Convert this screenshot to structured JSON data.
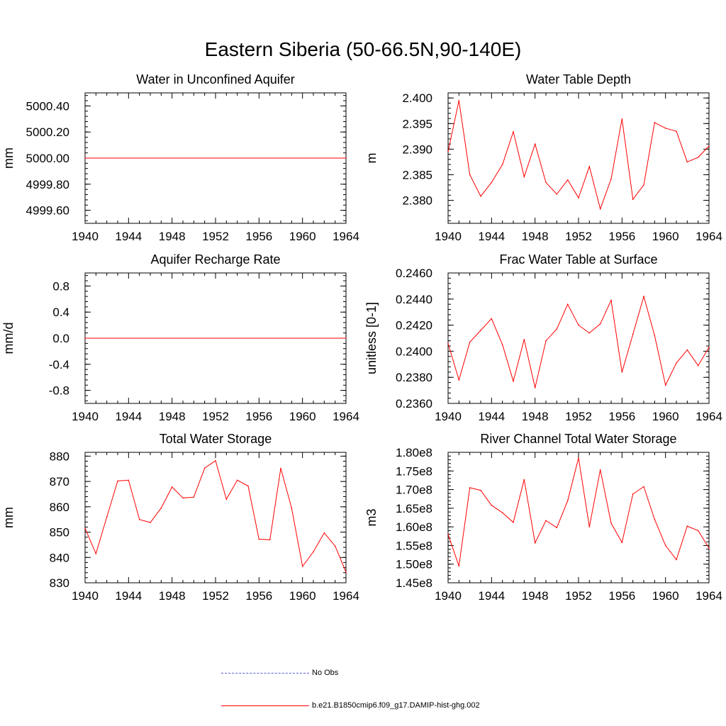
{
  "title": "Eastern Siberia (50-66.5N,90-140E)",
  "colors": {
    "model": "#ff0000",
    "obs": "#5a5ad8",
    "axis": "#000000"
  },
  "legend": {
    "obs_label": "No Obs",
    "model_label": "b.e21.B1850cmip6.f09_g17.DAMIP-hist-ghg.002"
  },
  "chart_data": [
    {
      "type": "line",
      "title": "Water in Unconfined Aquifer",
      "xlabel": "",
      "ylabel": "mm",
      "xlim": [
        1940,
        1964
      ],
      "ylim": [
        4999.5,
        5000.5
      ],
      "xticks": [
        "1940",
        "1944",
        "1948",
        "1952",
        "1956",
        "1960",
        "1964"
      ],
      "yticks": [
        {
          "v": 4999.6,
          "label": "4999.60"
        },
        {
          "v": 4999.8,
          "label": "4999.80"
        },
        {
          "v": 5000.0,
          "label": "5000.00"
        },
        {
          "v": 5000.2,
          "label": "5000.20"
        },
        {
          "v": 5000.4,
          "label": "5000.40"
        }
      ],
      "x": [
        1940,
        1964
      ],
      "series": [
        {
          "values": [
            5000.0,
            5000.0
          ]
        }
      ]
    },
    {
      "type": "line",
      "title": "Water Table Depth",
      "xlabel": "",
      "ylabel": "m",
      "xlim": [
        1940,
        1964
      ],
      "ylim": [
        2.3755,
        2.401
      ],
      "xticks": [
        "1940",
        "1944",
        "1948",
        "1952",
        "1956",
        "1960",
        "1964"
      ],
      "yticks": [
        {
          "v": 2.38,
          "label": "2.380"
        },
        {
          "v": 2.385,
          "label": "2.385"
        },
        {
          "v": 2.39,
          "label": "2.390"
        },
        {
          "v": 2.395,
          "label": "2.395"
        },
        {
          "v": 2.4,
          "label": "2.400"
        }
      ],
      "x": [
        1940,
        1941,
        1942,
        1943,
        1944,
        1945,
        1946,
        1947,
        1948,
        1949,
        1950,
        1951,
        1952,
        1953,
        1954,
        1955,
        1956,
        1957,
        1958,
        1959,
        1960,
        1961,
        1962,
        1963,
        1964
      ],
      "series": [
        {
          "values": [
            2.3895,
            2.3995,
            2.385,
            2.3808,
            2.3835,
            2.387,
            2.3934,
            2.3846,
            2.391,
            2.3835,
            2.3812,
            2.384,
            2.3805,
            2.3866,
            2.3783,
            2.3842,
            2.3959,
            2.3802,
            2.383,
            2.3952,
            2.3941,
            2.3935,
            2.3875,
            2.3884,
            2.3906
          ]
        }
      ]
    },
    {
      "type": "line",
      "title": "Aquifer Recharge Rate",
      "xlabel": "",
      "ylabel": "mm/d",
      "xlim": [
        1940,
        1964
      ],
      "ylim": [
        -1.0,
        1.0
      ],
      "xticks": [
        "1940",
        "1944",
        "1948",
        "1952",
        "1956",
        "1960",
        "1964"
      ],
      "yticks": [
        {
          "v": -0.8,
          "label": "-0.8"
        },
        {
          "v": -0.4,
          "label": "-0.4"
        },
        {
          "v": 0.0,
          "label": "0.0"
        },
        {
          "v": 0.4,
          "label": "0.4"
        },
        {
          "v": 0.8,
          "label": "0.8"
        }
      ],
      "x": [
        1940,
        1964
      ],
      "series": [
        {
          "values": [
            0.0,
            0.0
          ]
        }
      ]
    },
    {
      "type": "line",
      "title": "Frac Water Table at Surface",
      "xlabel": "",
      "ylabel": "unitless [0-1]",
      "xlim": [
        1940,
        1964
      ],
      "ylim": [
        0.236,
        0.246
      ],
      "xticks": [
        "1940",
        "1944",
        "1948",
        "1952",
        "1956",
        "1960",
        "1964"
      ],
      "yticks": [
        {
          "v": 0.236,
          "label": "0.2360"
        },
        {
          "v": 0.238,
          "label": "0.2380"
        },
        {
          "v": 0.24,
          "label": "0.2400"
        },
        {
          "v": 0.242,
          "label": "0.2420"
        },
        {
          "v": 0.244,
          "label": "0.2440"
        },
        {
          "v": 0.246,
          "label": "0.2460"
        }
      ],
      "x": [
        1940,
        1941,
        1942,
        1943,
        1944,
        1945,
        1946,
        1947,
        1948,
        1949,
        1950,
        1951,
        1952,
        1953,
        1954,
        1955,
        1956,
        1957,
        1958,
        1959,
        1960,
        1961,
        1962,
        1963,
        1964
      ],
      "series": [
        {
          "values": [
            0.2406,
            0.2378,
            0.2407,
            0.2416,
            0.2425,
            0.2405,
            0.2377,
            0.2409,
            0.2372,
            0.2408,
            0.2417,
            0.2436,
            0.242,
            0.2414,
            0.2421,
            0.2439,
            0.2384,
            0.2413,
            0.2442,
            0.2412,
            0.2374,
            0.2391,
            0.2401,
            0.2389,
            0.2403
          ]
        }
      ]
    },
    {
      "type": "line",
      "title": "Total Water Storage",
      "xlabel": "",
      "ylabel": "mm",
      "xlim": [
        1940,
        1964
      ],
      "ylim": [
        830,
        881.5
      ],
      "xticks": [
        "1940",
        "1944",
        "1948",
        "1952",
        "1956",
        "1960",
        "1964"
      ],
      "yticks": [
        {
          "v": 830,
          "label": "830"
        },
        {
          "v": 840,
          "label": "840"
        },
        {
          "v": 850,
          "label": "850"
        },
        {
          "v": 860,
          "label": "860"
        },
        {
          "v": 870,
          "label": "870"
        },
        {
          "v": 880,
          "label": "880"
        }
      ],
      "x": [
        1940,
        1941,
        1942,
        1943,
        1944,
        1945,
        1946,
        1947,
        1948,
        1949,
        1950,
        1951,
        1952,
        1953,
        1954,
        1955,
        1956,
        1957,
        1958,
        1959,
        1960,
        1961,
        1962,
        1963,
        1964
      ],
      "series": [
        {
          "values": [
            851.5,
            841.5,
            856,
            870.2,
            870.5,
            855,
            853.8,
            859.5,
            867.8,
            863.5,
            863.8,
            875.3,
            878.2,
            863,
            870.5,
            868.2,
            847.2,
            847,
            875.2,
            859.5,
            836.5,
            842.2,
            849.7,
            844.5,
            834.2
          ]
        }
      ]
    },
    {
      "type": "line",
      "title": "River Channel Total Water Storage",
      "xlabel": "",
      "ylabel": "m3",
      "xlim": [
        1940,
        1964
      ],
      "ylim": [
        145000000.0,
        180000000.0
      ],
      "xticks": [
        "1940",
        "1944",
        "1948",
        "1952",
        "1956",
        "1960",
        "1964"
      ],
      "yticks": [
        {
          "v": 145000000.0,
          "label": "1.45e8"
        },
        {
          "v": 150000000.0,
          "label": "1.50e8"
        },
        {
          "v": 155000000.0,
          "label": "1.55e8"
        },
        {
          "v": 160000000.0,
          "label": "1.60e8"
        },
        {
          "v": 165000000.0,
          "label": "1.65e8"
        },
        {
          "v": 170000000.0,
          "label": "1.70e8"
        },
        {
          "v": 175000000.0,
          "label": "1.75e8"
        },
        {
          "v": 180000000.0,
          "label": "1.80e8"
        }
      ],
      "x": [
        1940,
        1941,
        1942,
        1943,
        1944,
        1945,
        1946,
        1947,
        1948,
        1949,
        1950,
        1951,
        1952,
        1953,
        1954,
        1955,
        1956,
        1957,
        1958,
        1959,
        1960,
        1961,
        1962,
        1963,
        1964
      ],
      "series": [
        {
          "values": [
            158000000.0,
            149500000.0,
            170500000.0,
            169800000.0,
            165800000.0,
            163800000.0,
            161200000.0,
            172700000.0,
            155700000.0,
            161700000.0,
            159800000.0,
            167000000.0,
            178500000.0,
            160000000.0,
            175300000.0,
            161000000.0,
            155800000.0,
            168800000.0,
            170800000.0,
            162000000.0,
            155000000.0,
            151200000.0,
            160200000.0,
            159000000.0,
            154300000.0
          ]
        }
      ]
    }
  ]
}
